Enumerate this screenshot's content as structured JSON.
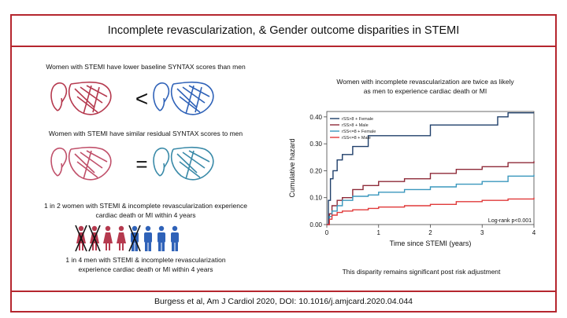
{
  "title": "Incomplete revascularization, & Gender outcome disparities in STEMI",
  "footer": "Burgess et al,  Am J Cardiol 2020, DOI: 10.1016/j.amjcard.2020.04.044",
  "left": {
    "baseline_text": "Women with STEMI have lower baseline SYNTAX scores than men",
    "baseline_symbol": "<",
    "residual_text": "Women with STEMI have similar residual SYNTAX scores to men",
    "residual_symbol": "=",
    "women_text_1": "1 in 2 women with STEMI & incomplete revascularization experience",
    "women_text_2": "cardiac death or MI within 4 years",
    "men_text_1": "1 in 4 men with STEMI & incomplete revascularization",
    "men_text_2": "experience cardiac death or MI within 4 years"
  },
  "right": {
    "heading_1": "Women with incomplete revascularization are twice as likely",
    "heading_2": "as men to experience cardiac death or MI",
    "bottom_note": "This disparity remains significant post risk adjustment"
  },
  "colors": {
    "frame": "#b5262e",
    "female": "#b5394e",
    "male": "#2f62b8"
  },
  "chart_data": {
    "type": "line",
    "title": "",
    "xlabel": "Time since STEMI (years)",
    "ylabel": "Cumulative hazard",
    "xlim": [
      0,
      4
    ],
    "ylim": [
      0,
      0.42
    ],
    "xticks": [
      "0",
      "1",
      "2",
      "3",
      "4"
    ],
    "yticks": [
      "0.00",
      "0.10",
      "0.20",
      "0.30",
      "0.40"
    ],
    "annotation": "Log-rank p<0.001",
    "series": [
      {
        "name": "rSS>8 + Female",
        "color": "#1f3f6a",
        "x": [
          0,
          0.03,
          0.07,
          0.12,
          0.2,
          0.3,
          0.5,
          0.8,
          0.8,
          1.0,
          1.5,
          2.0,
          2.5,
          3.0,
          3.3,
          3.5,
          4.0
        ],
        "y": [
          0,
          0.09,
          0.17,
          0.2,
          0.24,
          0.26,
          0.29,
          0.295,
          0.33,
          0.33,
          0.33,
          0.37,
          0.37,
          0.37,
          0.4,
          0.415,
          0.415
        ]
      },
      {
        "name": "rSS>8 + Male",
        "color": "#8e2a38",
        "x": [
          0,
          0.05,
          0.1,
          0.2,
          0.3,
          0.5,
          0.7,
          1.0,
          1.5,
          2.0,
          2.5,
          3.0,
          3.5,
          4.0
        ],
        "y": [
          0,
          0.04,
          0.07,
          0.09,
          0.1,
          0.13,
          0.145,
          0.16,
          0.17,
          0.19,
          0.205,
          0.215,
          0.23,
          0.235
        ]
      },
      {
        "name": "rSS<=8 + Female",
        "color": "#3a97bd",
        "x": [
          0,
          0.05,
          0.1,
          0.2,
          0.3,
          0.5,
          0.8,
          1.0,
          1.5,
          2.0,
          2.5,
          3.0,
          3.5,
          4.0
        ],
        "y": [
          0,
          0.03,
          0.05,
          0.07,
          0.09,
          0.105,
          0.11,
          0.12,
          0.13,
          0.14,
          0.15,
          0.16,
          0.18,
          0.185
        ]
      },
      {
        "name": "rSS<=8 + Male",
        "color": "#e03a3a",
        "x": [
          0,
          0.05,
          0.1,
          0.2,
          0.3,
          0.5,
          0.8,
          1.0,
          1.5,
          2.0,
          2.5,
          3.0,
          3.5,
          4.0
        ],
        "y": [
          0,
          0.02,
          0.035,
          0.045,
          0.05,
          0.055,
          0.06,
          0.065,
          0.07,
          0.075,
          0.085,
          0.09,
          0.095,
          0.1
        ]
      }
    ]
  }
}
